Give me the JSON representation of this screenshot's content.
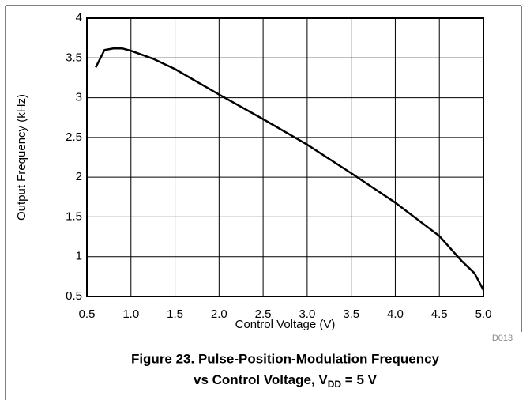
{
  "chart_data": {
    "type": "line",
    "title": "Figure 23. Pulse-Position-Modulation Frequency",
    "title_line2": "vs Control Voltage, V",
    "title_sub": "DD",
    "title_end": " = 5 V",
    "annotation": "D013",
    "x_label": "Control Voltage (V)",
    "y_label": "Output Frequency (kHz)",
    "x": [
      0.6,
      0.7,
      0.8,
      0.9,
      1.0,
      1.25,
      1.5,
      2.0,
      2.5,
      3.0,
      3.5,
      4.0,
      4.5,
      4.75,
      4.9,
      5.0
    ],
    "series": [
      {
        "color": "#000000",
        "values": [
          3.38,
          3.6,
          3.62,
          3.62,
          3.59,
          3.49,
          3.36,
          3.04,
          2.73,
          2.41,
          2.05,
          1.68,
          1.26,
          0.95,
          0.79,
          0.58
        ]
      }
    ],
    "xlim": [
      0.5,
      5.0
    ],
    "ylim": [
      0.5,
      4
    ],
    "xticks": [
      0.5,
      {
        "value": 1,
        "label": "1.0"
      },
      1.5,
      {
        "value": 2,
        "label": "2.0"
      },
      2.5,
      {
        "value": 3,
        "label": "3.0"
      },
      3.5,
      {
        "value": 4,
        "label": "4.0"
      },
      4.5,
      {
        "value": 5,
        "label": "5.0"
      }
    ],
    "yticks": [
      0.5,
      1,
      1.5,
      2,
      2.5,
      3,
      3.5,
      4
    ],
    "grid": true
  }
}
